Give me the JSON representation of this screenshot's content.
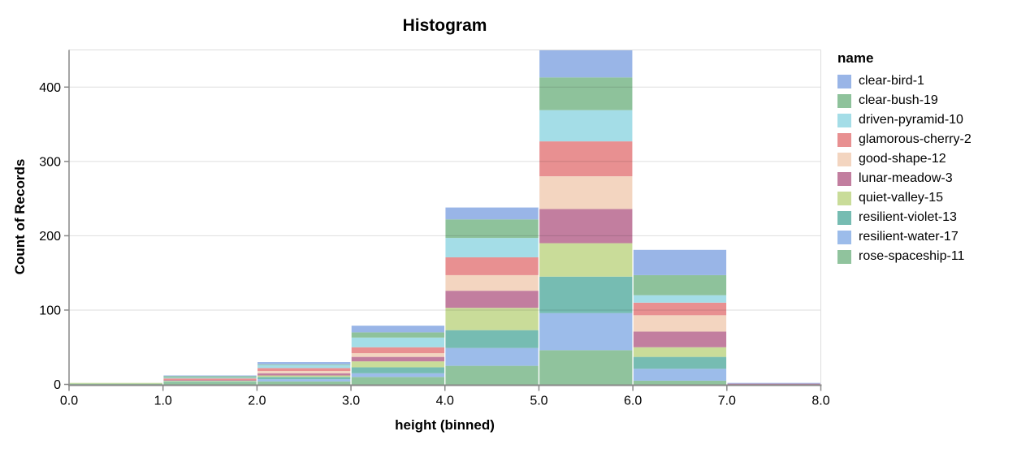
{
  "page": {
    "background": "#ffffff"
  },
  "header": {
    "title": "Histogram"
  },
  "legend": {
    "title": "name",
    "items": [
      {
        "label": "clear-bird-1",
        "color": "#99b5e7"
      },
      {
        "label": "clear-bush-19",
        "color": "#8ec29b"
      },
      {
        "label": "driven-pyramid-10",
        "color": "#a4dde7"
      },
      {
        "label": "glamorous-cherry-2",
        "color": "#e89091"
      },
      {
        "label": "good-shape-12",
        "color": "#f3d5c0"
      },
      {
        "label": "lunar-meadow-3",
        "color": "#c27e9f"
      },
      {
        "label": "quiet-valley-15",
        "color": "#c9dc99"
      },
      {
        "label": "resilient-violet-13",
        "color": "#76bcb2"
      },
      {
        "label": "resilient-water-17",
        "color": "#9cbcea"
      },
      {
        "label": "rose-spaceship-11",
        "color": "#90c39d"
      }
    ]
  },
  "chart_data": {
    "type": "bar",
    "subtype": "stacked-histogram",
    "title": "Histogram",
    "xlabel": "height (binned)",
    "ylabel": "Count of Records",
    "legend_title": "name",
    "legend_position": "right",
    "grid": true,
    "bin_edges": [
      0,
      1,
      2,
      3,
      4,
      5,
      6,
      7,
      8
    ],
    "x_tick_labels": [
      "0.0",
      "1.0",
      "2.0",
      "3.0",
      "4.0",
      "5.0",
      "6.0",
      "7.0",
      "8.0"
    ],
    "y_ticks": [
      0,
      100,
      200,
      300,
      400
    ],
    "xlim": [
      0,
      8
    ],
    "ylim": [
      0,
      450
    ],
    "stack_order_note": "first series listed renders at the top of each stack, last series at the bottom",
    "bin_totals": [
      2,
      12,
      30,
      79,
      238,
      450,
      181,
      2
    ],
    "series": [
      {
        "name": "clear-bird-1",
        "color": "#99b5e7",
        "values": [
          0,
          1,
          3,
          9,
          16,
          37,
          34,
          1
        ]
      },
      {
        "name": "clear-bush-19",
        "color": "#8ec29b",
        "values": [
          0,
          2,
          1,
          7,
          25,
          44,
          27,
          0
        ]
      },
      {
        "name": "driven-pyramid-10",
        "color": "#a4dde7",
        "values": [
          0,
          1,
          4,
          13,
          26,
          42,
          10,
          0
        ]
      },
      {
        "name": "glamorous-cherry-2",
        "color": "#e89091",
        "values": [
          0,
          2,
          4,
          8,
          24,
          47,
          17,
          0
        ]
      },
      {
        "name": "good-shape-12",
        "color": "#f3d5c0",
        "values": [
          0,
          0,
          3,
          5,
          21,
          44,
          22,
          0
        ]
      },
      {
        "name": "lunar-meadow-3",
        "color": "#c27e9f",
        "values": [
          0,
          1,
          3,
          6,
          23,
          46,
          21,
          1
        ]
      },
      {
        "name": "quiet-valley-15",
        "color": "#c9dc99",
        "values": [
          1,
          1,
          2,
          8,
          30,
          45,
          13,
          0
        ]
      },
      {
        "name": "resilient-violet-13",
        "color": "#76bcb2",
        "values": [
          0,
          1,
          3,
          8,
          24,
          49,
          16,
          0
        ]
      },
      {
        "name": "resilient-water-17",
        "color": "#9cbcea",
        "values": [
          0,
          0,
          3,
          5,
          24,
          50,
          16,
          0
        ]
      },
      {
        "name": "rose-spaceship-11",
        "color": "#90c39d",
        "values": [
          1,
          3,
          4,
          10,
          25,
          46,
          5,
          0
        ]
      }
    ],
    "colors": {
      "gridline": "#dddddd",
      "plot_border": "#dddddd",
      "axis_domain": "#888888",
      "tick": "#888888",
      "text": "#000000"
    }
  }
}
